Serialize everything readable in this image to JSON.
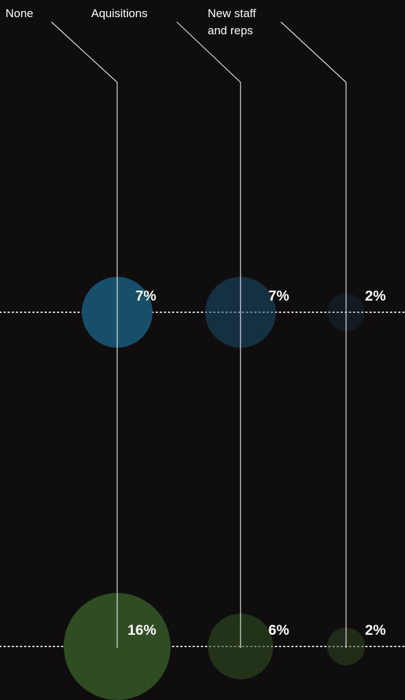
{
  "chart_data": {
    "type": "bubble",
    "categories": [
      {
        "lines": [
          "None"
        ]
      },
      {
        "lines": [
          "Aquisitions"
        ]
      },
      {
        "lines": [
          "New staff",
          "and reps"
        ]
      }
    ],
    "series": [
      {
        "color": "#174f6b",
        "values": [
          7,
          7,
          2
        ],
        "labels": [
          "7%",
          "7%",
          "2%"
        ],
        "opacity": [
          1,
          0.55,
          0.22
        ]
      },
      {
        "color": "#2f4c22",
        "values": [
          16,
          6,
          2
        ],
        "labels": [
          "16%",
          "6%",
          "2%"
        ],
        "opacity": [
          1,
          0.6,
          0.5
        ]
      }
    ],
    "grid": "dotted horizontal baseline per series",
    "colors": {
      "background": "#100d0e",
      "lines": "#e8e8e8",
      "text": "#ffffff"
    }
  }
}
